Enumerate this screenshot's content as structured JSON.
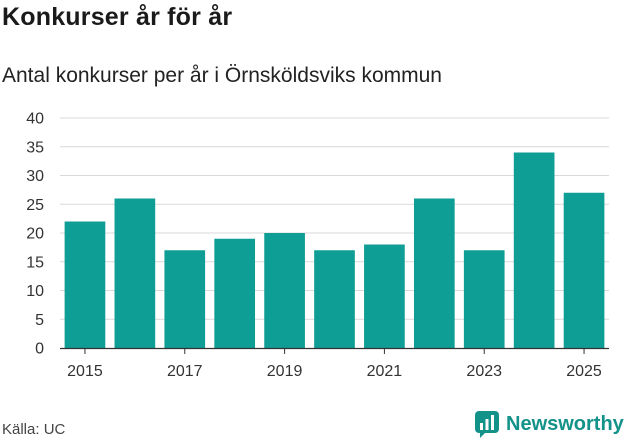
{
  "title": "Konkurser år för år",
  "subtitle": "Antal konkurser per år i Örnsköldsviks kommun",
  "source": "Källa: UC",
  "brand": "Newsworthy",
  "colors": {
    "bar": "#0f9e95",
    "grid": "#d9d9d9",
    "axis": "#333333",
    "brand": "#13928a"
  },
  "chart_data": {
    "type": "bar",
    "title": "Konkurser år för år",
    "subtitle": "Antal konkurser per år i Örnsköldsviks kommun",
    "xlabel": "",
    "ylabel": "",
    "categories": [
      "2015",
      "2016",
      "2017",
      "2018",
      "2019",
      "2020",
      "2021",
      "2022",
      "2023",
      "2024",
      "2025"
    ],
    "values": [
      22,
      26,
      17,
      19,
      20,
      17,
      18,
      26,
      17,
      34,
      27
    ],
    "xticks": [
      "2015",
      "2017",
      "2019",
      "2021",
      "2023",
      "2025"
    ],
    "yticks": [
      0,
      5,
      10,
      15,
      20,
      25,
      30,
      35,
      40
    ],
    "ylim": [
      0,
      40
    ],
    "grid": true,
    "legend": "none"
  }
}
